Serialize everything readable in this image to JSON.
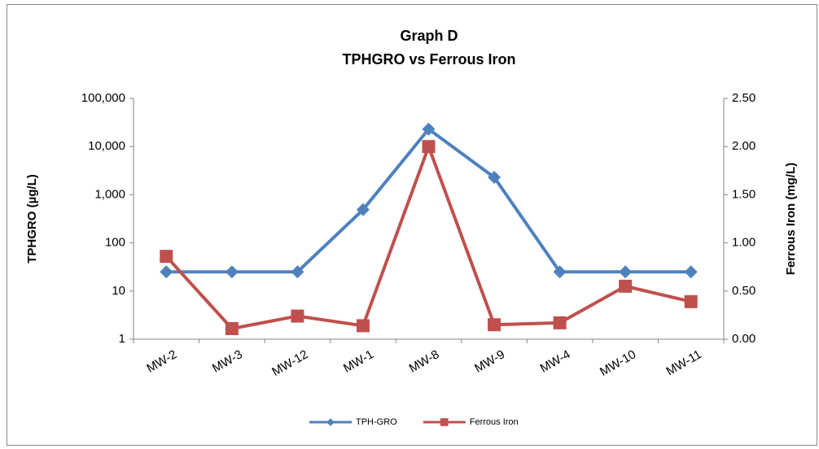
{
  "chart_data": {
    "type": "line",
    "title": "Graph D",
    "subtitle": "TPHGRO vs Ferrous Iron",
    "y_label": "TPHGRO (µg/L)",
    "y2_label": "Ferrous Iron (mg/L)",
    "categories": [
      "MW-2",
      "MW-3",
      "MW-12",
      "MW-1",
      "MW-8",
      "MW-9",
      "MW-4",
      "MW-10",
      "MW-11"
    ],
    "series": [
      {
        "name": "TPH-GRO",
        "color": "#4f81bd",
        "marker": "diamond",
        "values": [
          25,
          25,
          25,
          490,
          23000,
          2300,
          25,
          25,
          25
        ]
      },
      {
        "name": "Ferrous Iron",
        "color": "#c0504d",
        "marker": "square",
        "axis": "y2",
        "values": [
          0.86,
          0.11,
          0.24,
          0.14,
          2.0,
          0.15,
          0.17,
          0.55,
          0.39
        ]
      }
    ],
    "yscale": "log",
    "ylim": [
      1,
      100000
    ],
    "yticks": [
      1,
      10,
      100,
      {
        "value": 1000,
        "label": "1,000"
      },
      {
        "value": 10000,
        "label": "10,000"
      },
      {
        "value": 100000,
        "label": "100,000"
      }
    ],
    "y2lim": [
      0,
      2.5
    ],
    "y2ticks": [
      {
        "value": 0,
        "label": "0.00"
      },
      {
        "value": 0.5,
        "label": "0.50"
      },
      {
        "value": 1,
        "label": "1.00"
      },
      {
        "value": 1.5,
        "label": "1.50"
      },
      {
        "value": 2,
        "label": "2.00"
      },
      {
        "value": 2.5,
        "label": "2.50"
      }
    ],
    "grid": false,
    "legend": "bottom"
  }
}
